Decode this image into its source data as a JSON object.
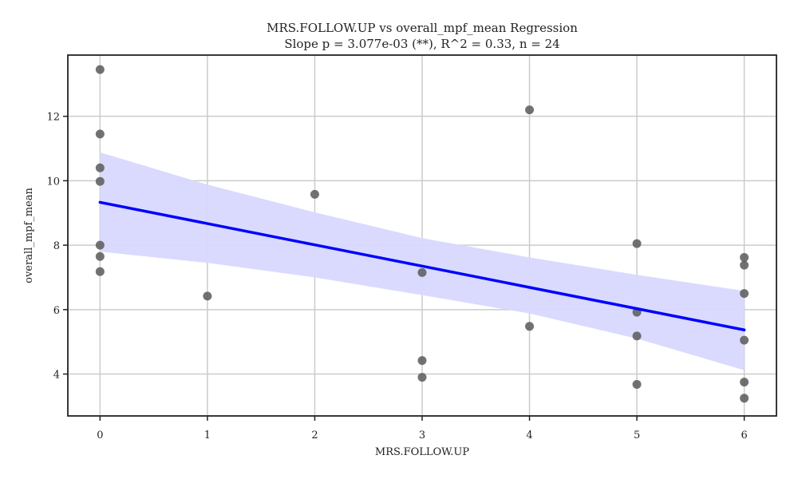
{
  "chart_data": {
    "type": "scatter",
    "title": "MRS.FOLLOW.UP vs overall_mpf_mean Regression",
    "subtitle": "Slope p = 3.077e-03 (**), R^2 = 0.33, n = 24",
    "xlabel": "MRS.FOLLOW.UP",
    "ylabel": "overall_mpf_mean",
    "xlim": [
      -0.3,
      6.3
    ],
    "ylim": [
      2.7,
      13.9
    ],
    "xticks": [
      0,
      1,
      2,
      3,
      4,
      5,
      6
    ],
    "yticks": [
      4,
      6,
      8,
      10,
      12
    ],
    "grid": true,
    "points": [
      {
        "x": 0,
        "y": 13.45
      },
      {
        "x": 0,
        "y": 11.45
      },
      {
        "x": 0,
        "y": 10.4
      },
      {
        "x": 0,
        "y": 9.98
      },
      {
        "x": 0,
        "y": 8.0
      },
      {
        "x": 0,
        "y": 7.65
      },
      {
        "x": 0,
        "y": 7.18
      },
      {
        "x": 1,
        "y": 6.42
      },
      {
        "x": 2,
        "y": 9.58
      },
      {
        "x": 3,
        "y": 7.15
      },
      {
        "x": 3,
        "y": 4.42
      },
      {
        "x": 3,
        "y": 3.9
      },
      {
        "x": 4,
        "y": 12.2
      },
      {
        "x": 4,
        "y": 5.48
      },
      {
        "x": 5,
        "y": 8.05
      },
      {
        "x": 5,
        "y": 5.92
      },
      {
        "x": 5,
        "y": 5.18
      },
      {
        "x": 5,
        "y": 3.68
      },
      {
        "x": 6,
        "y": 7.62
      },
      {
        "x": 6,
        "y": 7.38
      },
      {
        "x": 6,
        "y": 6.5
      },
      {
        "x": 6,
        "y": 5.05
      },
      {
        "x": 6,
        "y": 3.75
      },
      {
        "x": 6,
        "y": 3.25
      }
    ],
    "regression": {
      "x": [
        0,
        1,
        2,
        3,
        4,
        5,
        6
      ],
      "y": [
        9.33,
        8.67,
        8.01,
        7.35,
        6.69,
        6.03,
        5.37
      ]
    },
    "confidence_band": {
      "x": [
        0,
        1,
        2,
        3,
        4,
        5,
        6
      ],
      "upper": [
        10.88,
        9.88,
        9.02,
        8.22,
        7.62,
        7.08,
        6.58
      ],
      "lower": [
        7.8,
        7.45,
        7.0,
        6.45,
        5.88,
        5.1,
        4.12
      ]
    },
    "colors": {
      "points": "#595959",
      "line": "#0000ff",
      "band": "#d8d8ff",
      "grid": "#cccccc",
      "axes": "#222222"
    }
  }
}
